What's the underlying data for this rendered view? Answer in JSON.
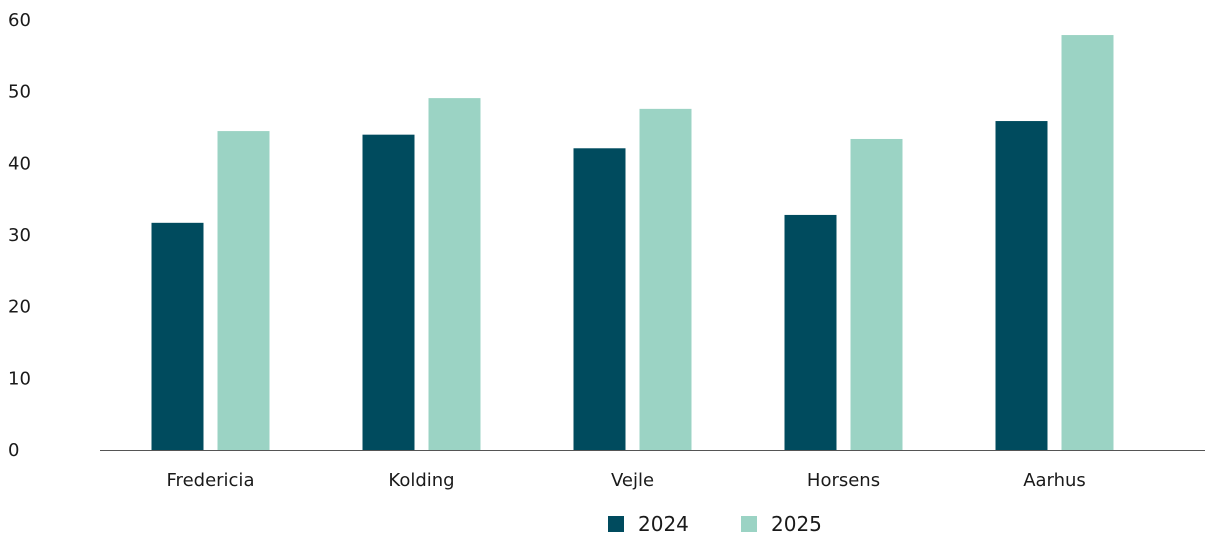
{
  "chart_data": {
    "type": "bar",
    "categories": [
      "Fredericia",
      "Kolding",
      "Vejle",
      "Horsens",
      "Aarhus"
    ],
    "series": [
      {
        "name": "2024",
        "color": "#004b5e",
        "values": [
          31.7,
          44.0,
          42.1,
          32.8,
          45.9
        ]
      },
      {
        "name": "2025",
        "color": "#9bd3c4",
        "values": [
          44.5,
          49.1,
          47.6,
          43.4,
          57.9
        ]
      }
    ],
    "yticks": [
      "0",
      "10",
      "20",
      "30",
      "40",
      "50",
      "60"
    ],
    "ylim": [
      0,
      60
    ],
    "title": "",
    "xlabel": "",
    "ylabel": "",
    "grid": false,
    "legend_position": "bottom-center"
  }
}
